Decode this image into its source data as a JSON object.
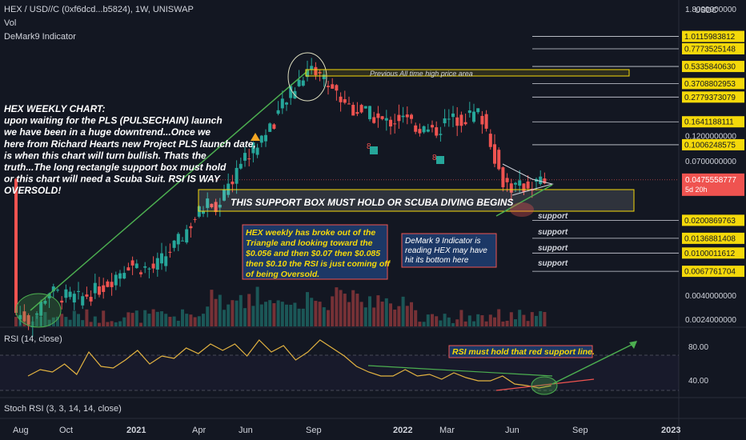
{
  "header": {
    "symbol_line": "HEX / USD//C (0xf6dcd...b5824), 1W, UNISWAP",
    "vol_label": "Vol",
    "indicator_label": "DeMark9 Indicator"
  },
  "price_axis": {
    "currency": "USDC",
    "ticks": [
      {
        "label": "1.8000000000",
        "v": 1.8
      },
      {
        "label": "0.1200000000",
        "v": 0.12
      },
      {
        "label": "0.0700000000",
        "v": 0.07
      },
      {
        "label": "0.0040000000",
        "v": 0.004
      },
      {
        "label": "0.0024000000",
        "v": 0.0024
      }
    ],
    "levels": [
      {
        "label": "1.0115983812",
        "v": 1.0116
      },
      {
        "label": "0.7773525148",
        "v": 0.7774
      },
      {
        "label": "0.5335840630",
        "v": 0.5336
      },
      {
        "label": "0.3708802953",
        "v": 0.3709
      },
      {
        "label": "0.2779373079",
        "v": 0.2779
      },
      {
        "label": "0.1641188111",
        "v": 0.1641
      },
      {
        "label": "0.1006248575",
        "v": 0.1006
      },
      {
        "label": "0.0200869763",
        "v": 0.02009
      },
      {
        "label": "0.0136881408",
        "v": 0.01369
      },
      {
        "label": "0.0100011612",
        "v": 0.01
      },
      {
        "label": "0.0067761704",
        "v": 0.00678
      }
    ],
    "current_price": "0.0475558777",
    "countdown": "5d 20h"
  },
  "support_labels": [
    "support",
    "support",
    "support",
    "support"
  ],
  "time_axis": [
    "Aug",
    "Oct",
    "2021",
    "Apr",
    "Jun",
    "Sep",
    "2022",
    "Mar",
    "Jun",
    "Sep",
    "2023"
  ],
  "annotations": {
    "ath_label": "Previous All time high price area",
    "weekly_chart_text": [
      "HEX WEEKLY CHART:",
      "upon waiting for the PLS (PULSECHAIN) launch",
      "we have been in a huge downtrend...Once we",
      "here from Richard Hearts new Project PLS launch date,",
      "is when this chart will turn bullish. Thats the",
      "truth...The long rectangle support box must hold",
      "or this chart will need a Scuba Suit. RSI IS WAY",
      "OVERSOLD!"
    ],
    "support_box_text": "THIS SUPPORT BOX MUST HOLD OR SCUBA DIVING BEGINS",
    "breakout_text": [
      "HEX weekly has broke out of the",
      "Triangle and looking toward the",
      "$0.056 and then $0.07 then $0.085",
      "then $0.10 the RSI is just coming off",
      "of being Oversold."
    ],
    "demark_text": [
      "DeMark 9 Indicator is",
      "reading HEX may have",
      "hit its bottom here"
    ],
    "rsi_text": "RSI must hold that red support line.",
    "demark_counts": [
      "9",
      "8",
      "8"
    ]
  },
  "rsi_pane": {
    "label": "RSI (14, close)",
    "ticks": [
      "80.00",
      "40.00"
    ]
  },
  "stoch_pane": {
    "label": "Stoch RSI (3, 3, 14, 14, close)"
  },
  "colors": {
    "up": "#26a69a",
    "down": "#ef5350",
    "background": "#131722",
    "accent_yellow": "#f5d90a",
    "rsi_line": "#e3b341",
    "trend_green": "#4caf50"
  },
  "chart_data": {
    "type": "candlestick",
    "timeframe": "1W",
    "scale": "log",
    "ylim": [
      0.0018,
      1.8
    ],
    "approx_close_path": [
      {
        "x": "2020-08",
        "y": 0.0028
      },
      {
        "x": "2020-10",
        "y": 0.0045
      },
      {
        "x": "2021-01",
        "y": 0.008
      },
      {
        "x": "2021-04",
        "y": 0.02
      },
      {
        "x": "2021-06",
        "y": 0.1
      },
      {
        "x": "2021-09",
        "y": 0.5
      },
      {
        "x": "2022-01",
        "y": 0.18
      },
      {
        "x": "2022-03",
        "y": 0.15
      },
      {
        "x": "2022-06",
        "y": 0.042
      },
      {
        "x": "2022-07",
        "y": 0.0476
      }
    ],
    "rsi": {
      "ylim": [
        20,
        100
      ],
      "bands": [
        70,
        30
      ]
    }
  }
}
